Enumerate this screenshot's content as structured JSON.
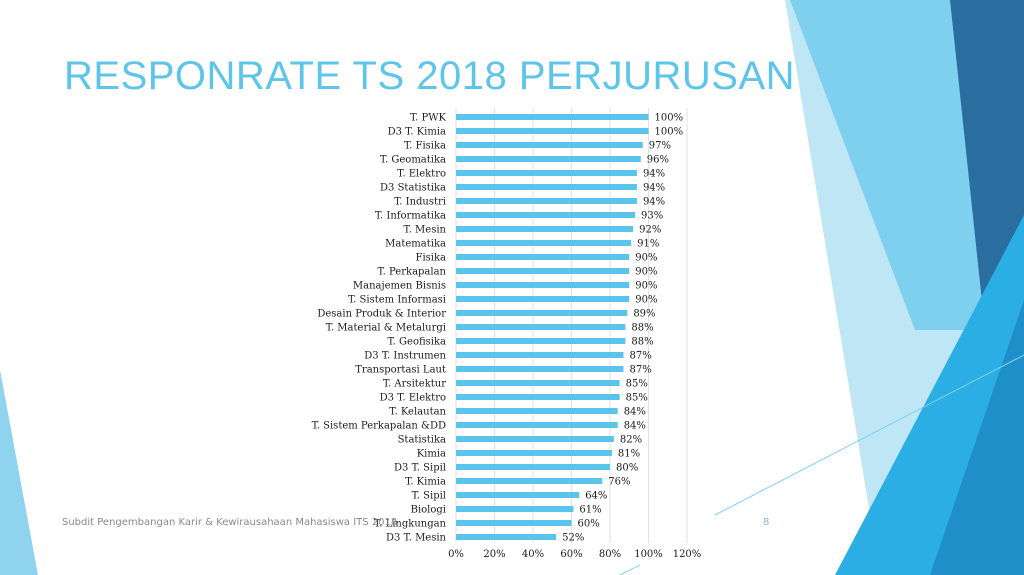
{
  "slide": {
    "title": "RESPONRATE TS 2018 PERJURUSAN",
    "footer": "Subdit Pengembangan Karir & Kewirausahaan Mahasiswa ITS 2018",
    "page_number": "8"
  },
  "colors": {
    "bar": "#5bc4ea",
    "title": "#5ec5ea",
    "deco_light": "#bfe6f5",
    "deco_mid": "#7fd0ee",
    "deco_bright": "#2aaee3",
    "deco_dark": "#2a6d9f"
  },
  "chart_data": {
    "type": "bar",
    "orientation": "horizontal",
    "categories": [
      "T. PWK",
      "D3 T. Kimia",
      "T. Fisika",
      "T. Geomatika",
      "T. Elektro",
      "D3 Statistika",
      "T. Industri",
      "T. Informatika",
      "T. Mesin",
      "Matematika",
      "Fisika",
      "T. Perkapalan",
      "Manajemen Bisnis",
      "T. Sistem Informasi",
      "Desain Produk & Interior",
      "T. Material & Metalurgi",
      "T. Geofisika",
      "D3 T. Instrumen",
      "Transportasi Laut",
      "T. Arsitektur",
      "D3 T. Elektro",
      "T. Kelautan",
      "T. Sistem Perkapalan &DD",
      "Statistika",
      "Kimia",
      "D3 T. Sipil",
      "T. Kimia",
      "T. Sipil",
      "Biologi",
      "T. Lingkungan",
      "D3 T. Mesin"
    ],
    "values": [
      100,
      100,
      97,
      96,
      94,
      94,
      94,
      93,
      92,
      91,
      90,
      90,
      90,
      90,
      89,
      88,
      88,
      87,
      87,
      85,
      85,
      84,
      84,
      82,
      81,
      80,
      76,
      64,
      61,
      60,
      52
    ],
    "value_labels": [
      "100%",
      "100%",
      "97%",
      "96%",
      "94%",
      "94%",
      "94%",
      "93%",
      "92%",
      "91%",
      "90%",
      "90%",
      "90%",
      "90%",
      "89%",
      "88%",
      "88%",
      "87%",
      "87%",
      "85%",
      "85%",
      "84%",
      "84%",
      "82%",
      "81%",
      "80%",
      "76%",
      "64%",
      "61%",
      "60%",
      "52%"
    ],
    "x_ticks": [
      0,
      20,
      40,
      60,
      80,
      100,
      120
    ],
    "x_tick_labels": [
      "0%",
      "20%",
      "40%",
      "60%",
      "80%",
      "100%",
      "120%"
    ],
    "xlim": [
      0,
      120
    ],
    "grid": "vertical",
    "legend": "none"
  }
}
